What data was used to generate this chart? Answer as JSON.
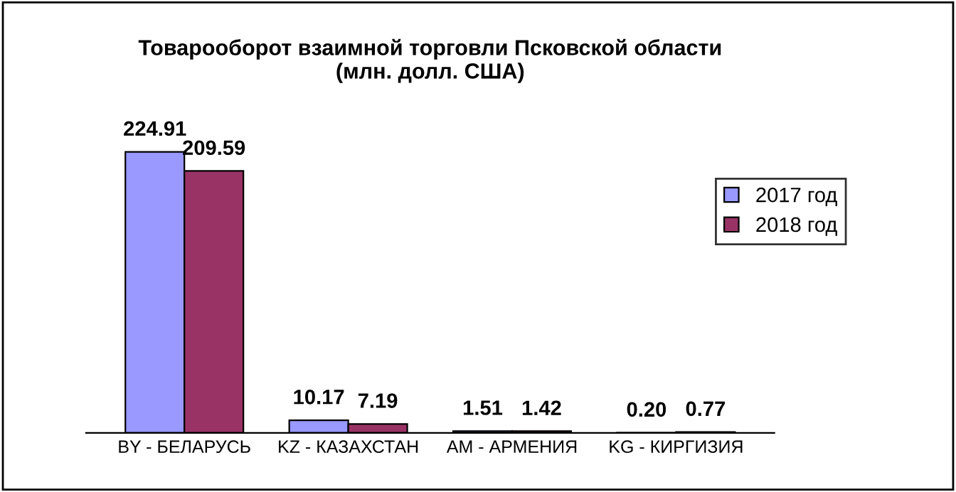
{
  "chart_data": {
    "type": "bar",
    "title": "Товарооборот взаимной торговли Псковской области\n(млн. долл. США)",
    "categories": [
      "BY - БЕЛАРУСЬ",
      "KZ - КАЗАХСТАН",
      "AM - АРМЕНИЯ",
      "KG - КИРГИЗИЯ"
    ],
    "series": [
      {
        "name": "2017 год",
        "color": "#9999ff",
        "values": [
          224.91,
          10.17,
          1.51,
          0.2
        ],
        "value_labels": [
          "224.91",
          "10.17",
          "1.51",
          "0.20"
        ]
      },
      {
        "name": "2018 год",
        "color": "#993366",
        "values": [
          209.59,
          7.19,
          1.42,
          0.77
        ],
        "value_labels": [
          "209.59",
          "7.19",
          "1.42",
          "0.77"
        ]
      }
    ],
    "data_labels": true,
    "legend": "right",
    "tick_labels": "x",
    "grid": false
  }
}
